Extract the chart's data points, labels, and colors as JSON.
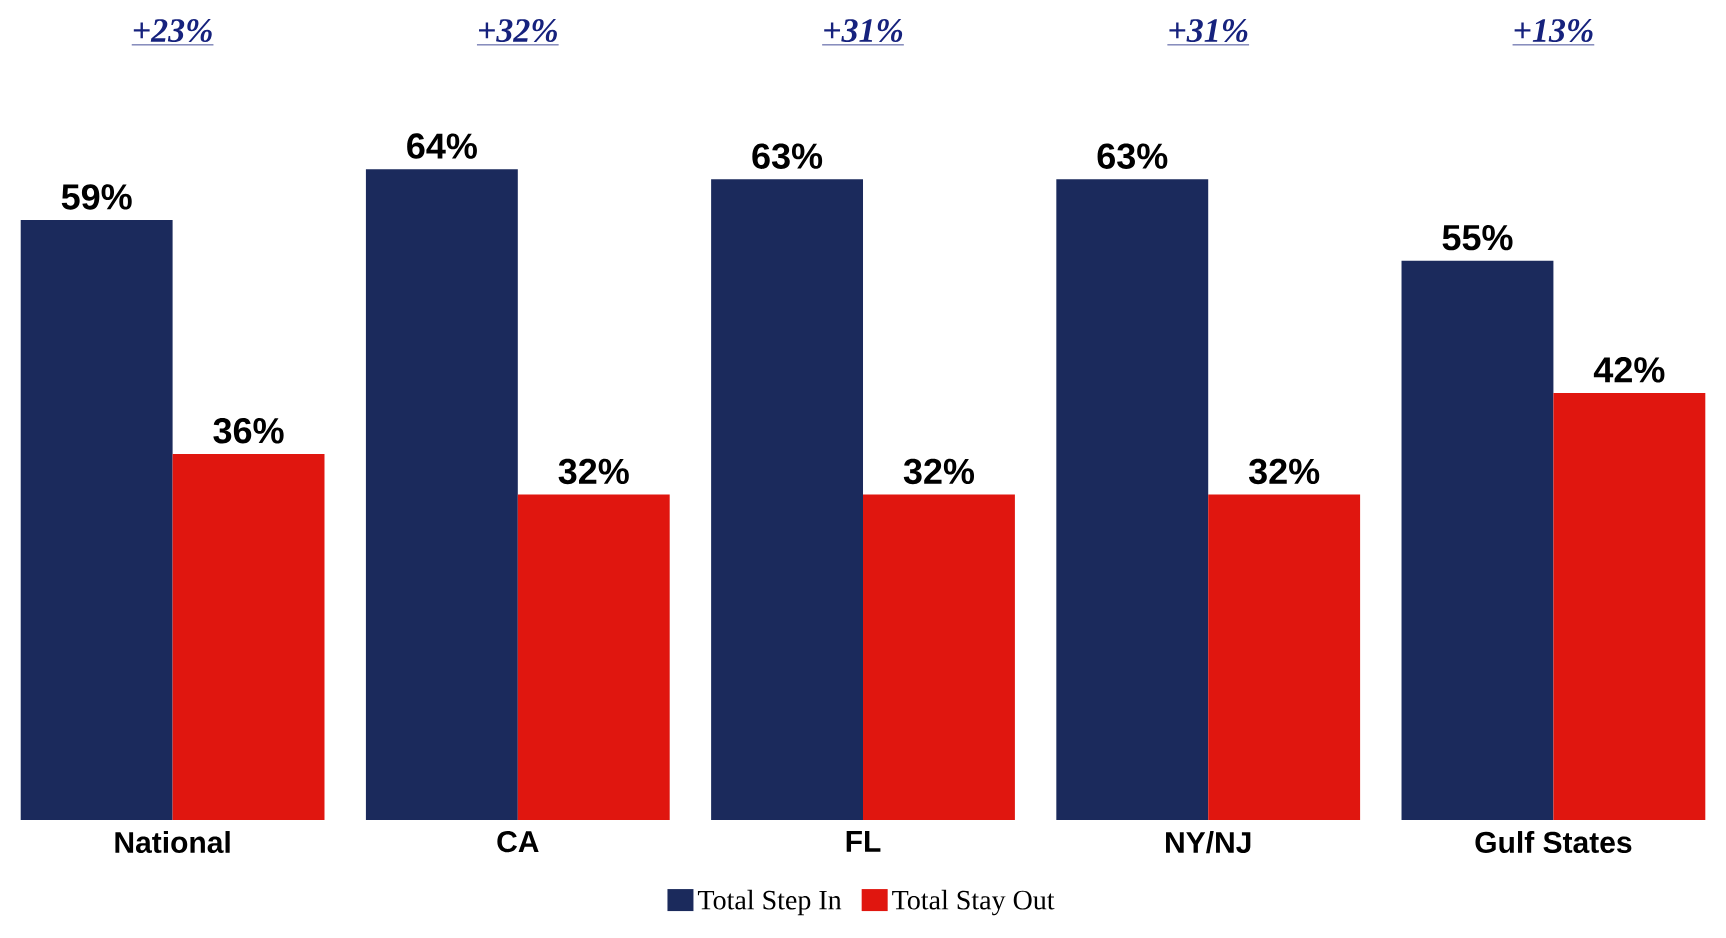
{
  "chart_data": {
    "type": "bar",
    "categories": [
      "National",
      "CA",
      "FL",
      "NY/NJ",
      "Gulf States"
    ],
    "series": [
      {
        "name": "Total Step In",
        "color": "#1b2a5c",
        "values": [
          59,
          64,
          63,
          63,
          55
        ],
        "value_labels": [
          "59%",
          "64%",
          "63%",
          "63%",
          "55%"
        ]
      },
      {
        "name": "Total Stay Out",
        "color": "#e0160f",
        "values": [
          36,
          32,
          32,
          32,
          42
        ],
        "value_labels": [
          "36%",
          "32%",
          "32%",
          "32%",
          "42%"
        ]
      }
    ],
    "annotations": [
      "+23%",
      "+32%",
      "+31%",
      "+31%",
      "+13%"
    ],
    "legend": "bottom"
  }
}
